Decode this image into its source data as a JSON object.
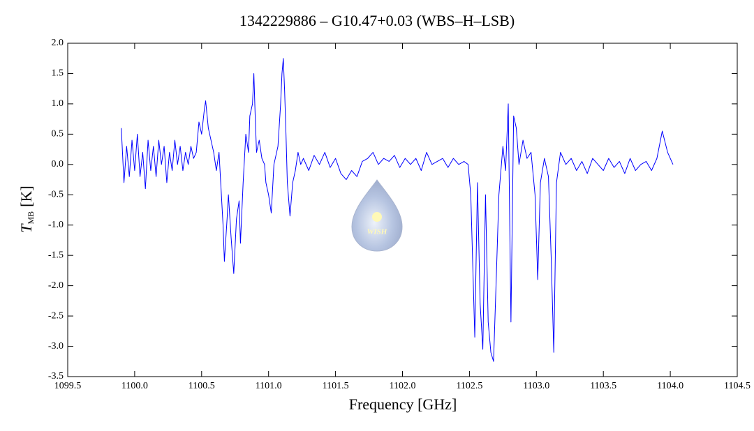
{
  "chart_data": {
    "type": "line",
    "title": "1342229886 – G10.47+0.03 (WBS–H–LSB)",
    "xlabel": "Frequency [GHz]",
    "ylabel_symbol": "T",
    "ylabel_subscript": "MB",
    "ylabel_unit": "[K]",
    "watermark": "WISH",
    "xlim": [
      1099.5,
      1104.5
    ],
    "ylim": [
      -3.5,
      2.0
    ],
    "xticks": [
      1099.5,
      {
        "value": 1100,
        "label": "1100.0"
      },
      1100.5,
      {
        "value": 1101,
        "label": "1101.0"
      },
      1101.5,
      {
        "value": 1102,
        "label": "1102.0"
      },
      1102.5,
      {
        "value": 1103,
        "label": "1103.0"
      },
      1103.5,
      {
        "value": 1104,
        "label": "1104.0"
      },
      1104.5
    ],
    "yticks": [
      {
        "value": 2,
        "label": "2.0"
      },
      1.5,
      {
        "value": 1,
        "label": "1.0"
      },
      0.5,
      {
        "value": 0,
        "label": "0.0"
      },
      -0.5,
      {
        "value": -1,
        "label": "-1.0"
      },
      -1.5,
      {
        "value": -2,
        "label": "-2.0"
      },
      -2.5,
      {
        "value": -3,
        "label": "-3.0"
      },
      -3.5
    ],
    "series": [
      {
        "color": "#0000ff",
        "x": [
          1099.9,
          1099.92,
          1099.94,
          1099.96,
          1099.98,
          1100.0,
          1100.02,
          1100.04,
          1100.06,
          1100.08,
          1100.1,
          1100.12,
          1100.14,
          1100.16,
          1100.18,
          1100.2,
          1100.22,
          1100.24,
          1100.26,
          1100.28,
          1100.3,
          1100.32,
          1100.34,
          1100.36,
          1100.38,
          1100.4,
          1100.42,
          1100.44,
          1100.46,
          1100.48,
          1100.5,
          1100.52,
          1100.53,
          1100.55,
          1100.57,
          1100.59,
          1100.61,
          1100.63,
          1100.65,
          1100.66,
          1100.67,
          1100.69,
          1100.7,
          1100.72,
          1100.74,
          1100.76,
          1100.78,
          1100.79,
          1100.81,
          1100.83,
          1100.85,
          1100.86,
          1100.88,
          1100.89,
          1100.9,
          1100.91,
          1100.93,
          1100.95,
          1100.97,
          1100.98,
          1101.0,
          1101.02,
          1101.03,
          1101.04,
          1101.06,
          1101.07,
          1101.09,
          1101.1,
          1101.11,
          1101.12,
          1101.13,
          1101.14,
          1101.16,
          1101.18,
          1101.2,
          1101.22,
          1101.24,
          1101.26,
          1101.3,
          1101.34,
          1101.38,
          1101.42,
          1101.46,
          1101.5,
          1101.54,
          1101.58,
          1101.62,
          1101.66,
          1101.7,
          1101.74,
          1101.78,
          1101.82,
          1101.86,
          1101.9,
          1101.94,
          1101.98,
          1102.02,
          1102.06,
          1102.1,
          1102.14,
          1102.18,
          1102.22,
          1102.26,
          1102.3,
          1102.34,
          1102.38,
          1102.42,
          1102.46,
          1102.49,
          1102.51,
          1102.54,
          1102.56,
          1102.58,
          1102.6,
          1102.62,
          1102.64,
          1102.66,
          1102.68,
          1102.7,
          1102.72,
          1102.75,
          1102.77,
          1102.79,
          1102.81,
          1102.83,
          1102.85,
          1102.87,
          1102.9,
          1102.93,
          1102.96,
          1102.99,
          1103.01,
          1103.03,
          1103.06,
          1103.09,
          1103.11,
          1103.13,
          1103.15,
          1103.18,
          1103.22,
          1103.26,
          1103.3,
          1103.34,
          1103.38,
          1103.42,
          1103.46,
          1103.5,
          1103.54,
          1103.58,
          1103.62,
          1103.66,
          1103.7,
          1103.74,
          1103.78,
          1103.82,
          1103.86,
          1103.9,
          1103.94,
          1103.98,
          1104.02
        ],
        "values": [
          0.6,
          -0.3,
          0.3,
          -0.2,
          0.4,
          -0.1,
          0.5,
          -0.2,
          0.2,
          -0.4,
          0.4,
          -0.1,
          0.3,
          -0.2,
          0.4,
          0.0,
          0.3,
          -0.3,
          0.2,
          -0.1,
          0.4,
          0.0,
          0.3,
          -0.1,
          0.2,
          0.0,
          0.3,
          0.1,
          0.2,
          0.7,
          0.5,
          0.9,
          1.05,
          0.6,
          0.4,
          0.2,
          -0.1,
          0.2,
          -0.6,
          -1.0,
          -1.6,
          -0.9,
          -0.5,
          -1.2,
          -1.8,
          -0.9,
          -0.6,
          -1.3,
          -0.3,
          0.5,
          0.2,
          0.8,
          1.0,
          1.5,
          0.8,
          0.2,
          0.4,
          0.1,
          0.0,
          -0.3,
          -0.5,
          -0.8,
          -0.4,
          0.0,
          0.2,
          0.3,
          1.0,
          1.5,
          1.75,
          1.2,
          0.5,
          -0.3,
          -0.85,
          -0.3,
          -0.1,
          0.2,
          0.0,
          0.1,
          -0.1,
          0.15,
          0.0,
          0.2,
          -0.05,
          0.1,
          -0.15,
          -0.25,
          -0.1,
          -0.2,
          0.05,
          0.1,
          0.2,
          0.0,
          0.1,
          0.05,
          0.15,
          -0.05,
          0.1,
          0.0,
          0.1,
          -0.1,
          0.2,
          0.0,
          0.05,
          0.1,
          -0.05,
          0.1,
          0.0,
          0.05,
          0.0,
          -0.5,
          -2.85,
          -0.3,
          -2.3,
          -3.05,
          -0.5,
          -2.6,
          -3.1,
          -3.25,
          -1.9,
          -0.5,
          0.3,
          -0.1,
          1.0,
          -2.6,
          0.8,
          0.6,
          0.0,
          0.4,
          0.1,
          0.2,
          -0.5,
          -1.9,
          -0.3,
          0.1,
          -0.2,
          -1.5,
          -3.1,
          -0.3,
          0.2,
          0.0,
          0.1,
          -0.1,
          0.05,
          -0.15,
          0.1,
          0.0,
          -0.1,
          0.1,
          -0.05,
          0.05,
          -0.15,
          0.1,
          -0.1,
          0.0,
          0.05,
          -0.1,
          0.1,
          0.55,
          0.2,
          0.0
        ]
      }
    ]
  }
}
